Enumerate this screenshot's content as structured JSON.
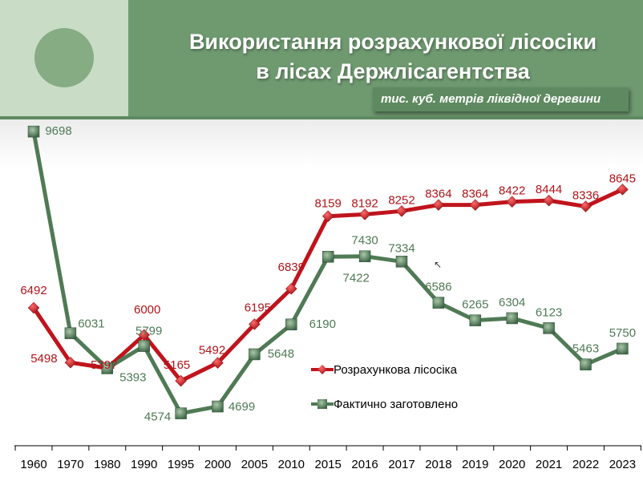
{
  "header": {
    "title_line1": "Використання розрахункової лісосіки",
    "title_line2": "в лісах Держлісагентства",
    "unit": "тис. куб. метрів ліквідної деревини"
  },
  "chart_data": {
    "type": "line",
    "categories": [
      "1960",
      "1970",
      "1980",
      "1990",
      "1995",
      "2000",
      "2005",
      "2010",
      "2015",
      "2016",
      "2017",
      "2018",
      "2019",
      "2020",
      "2021",
      "2022",
      "2023"
    ],
    "series": [
      {
        "name": "Розрахункова лісосіка",
        "color": "#c0141c",
        "marker": "diamond",
        "values": [
          6492,
          5498,
          5397,
          6000,
          5165,
          5492,
          6195,
          6839,
          8159,
          8192,
          8252,
          8364,
          8364,
          8422,
          8444,
          8336,
          8645
        ]
      },
      {
        "name": "Фактично заготовлено",
        "color": "#4f7a55",
        "marker": "square",
        "values": [
          9698,
          6031,
          5393,
          5799,
          4574,
          4699,
          5648,
          6190,
          7422,
          7430,
          7334,
          6586,
          6265,
          6304,
          6123,
          5463,
          5750
        ]
      }
    ],
    "ylim": [
      4000,
      10000
    ],
    "grid": false,
    "legend": "center-right"
  }
}
